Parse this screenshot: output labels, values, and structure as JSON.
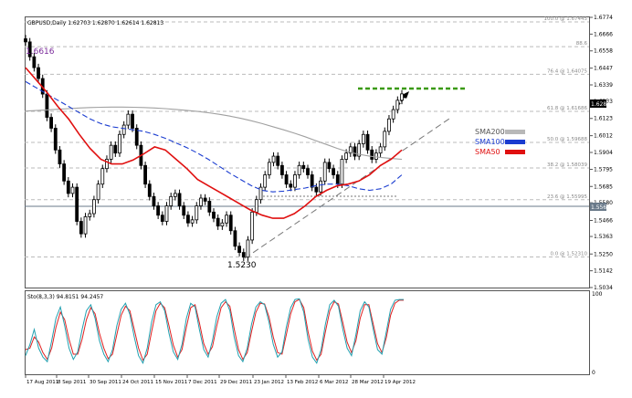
{
  "header": {
    "symbol_info": "GBPUSD,Daily 1.62703 1.62870 1.62614 1.62813"
  },
  "chart_data": {
    "type": "line",
    "title": "GBPUSD,Daily",
    "xlabel": "",
    "ylabel": "",
    "ylim": [
      1.5034,
      1.6774
    ],
    "y_ticks": [
      "1.6774",
      "1.6666",
      "1.6558",
      "1.6447",
      "1.6339",
      "1.6233",
      "1.6123",
      "1.6012",
      "1.5904",
      "1.5795",
      "1.5685",
      "1.5580",
      "1.5466",
      "1.5363",
      "1.5250",
      "1.5142",
      "1.5034"
    ],
    "x_ticks": [
      "17 Aug 2011",
      "8 Sep 2011",
      "30 Sep 2011",
      "24 Oct 2011",
      "15 Nov 2011",
      "7 Dec 2011",
      "29 Dec 2011",
      "23 Jan 2012",
      "13 Feb 2012",
      "6 Mar 2012",
      "28 Mar 2012",
      "19 Apr 2012"
    ],
    "current_price": "1.6281",
    "level_price": "1.5566",
    "price_labels": {
      "high": "1.6616",
      "low": "1.5230"
    },
    "fib_levels": [
      {
        "label": "100.0 @ 1.67445",
        "value": 1.67445
      },
      {
        "label": "88.6",
        "value": 1.6585
      },
      {
        "label": "76.4 @ 1.64075",
        "value": 1.64075
      },
      {
        "label": "61.8 @ 1.61686",
        "value": 1.61686
      },
      {
        "label": "50.0 @ 1.59688",
        "value": 1.59688
      },
      {
        "label": "38.2 @ 1.58039",
        "value": 1.58039
      },
      {
        "label": "23.6 @ 1.55995",
        "value": 1.55995
      },
      {
        "label": "0.0 @ 1.52310",
        "value": 1.5231
      }
    ],
    "price": [
      1.6616,
      1.652,
      1.645,
      1.638,
      1.628,
      1.613,
      1.606,
      1.592,
      1.583,
      1.572,
      1.564,
      1.568,
      1.546,
      1.538,
      1.549,
      1.551,
      1.56,
      1.57,
      1.58,
      1.586,
      1.595,
      1.59,
      1.602,
      1.608,
      1.615,
      1.606,
      1.595,
      1.582,
      1.57,
      1.562,
      1.556,
      1.55,
      1.546,
      1.556,
      1.562,
      1.564,
      1.556,
      1.55,
      1.545,
      1.547,
      1.556,
      1.561,
      1.559,
      1.552,
      1.548,
      1.543,
      1.545,
      1.55,
      1.54,
      1.53,
      1.526,
      1.523,
      1.534,
      1.552,
      1.56,
      1.568,
      1.576,
      1.584,
      1.588,
      1.582,
      1.576,
      1.57,
      1.568,
      1.576,
      1.582,
      1.58,
      1.576,
      1.568,
      1.565,
      1.572,
      1.584,
      1.58,
      1.576,
      1.57,
      1.586,
      1.59,
      1.594,
      1.588,
      1.596,
      1.602,
      1.592,
      1.586,
      1.59,
      1.594,
      1.604,
      1.612,
      1.618,
      1.624,
      1.6281
    ],
    "series": [
      {
        "name": "SMA200",
        "color": "#a0a0a0",
        "legend_color": "#b8b8b8",
        "dash": "solid",
        "values": [
          1.617,
          1.6174,
          1.6178,
          1.6182,
          1.6186,
          1.619,
          1.6193,
          1.6195,
          1.6196,
          1.6196,
          1.6195,
          1.6193,
          1.619,
          1.6186,
          1.6181,
          1.6175,
          1.6168,
          1.616,
          1.615,
          1.6138,
          1.6124,
          1.6108,
          1.609,
          1.607,
          1.605,
          1.6028,
          1.6005,
          1.598,
          1.5955,
          1.593,
          1.5908,
          1.5892,
          1.588,
          1.5872,
          1.5865,
          1.586
        ]
      },
      {
        "name": "SMA100",
        "color": "#1a3cd0",
        "legend_color": "#1a3cd0",
        "dash": "dashed",
        "values": [
          1.636,
          1.632,
          1.628,
          1.624,
          1.62,
          1.616,
          1.612,
          1.609,
          1.607,
          1.606,
          1.605,
          1.604,
          1.602,
          1.5995,
          1.5965,
          1.5935,
          1.59,
          1.586,
          1.5815,
          1.577,
          1.573,
          1.569,
          1.566,
          1.565,
          1.5655,
          1.5665,
          1.5675,
          1.569,
          1.57,
          1.57,
          1.569,
          1.567,
          1.566,
          1.567,
          1.57,
          1.576
        ]
      },
      {
        "name": "SMA50",
        "color": "#e01010",
        "legend_color": "#e01010",
        "dash": "solid",
        "values": [
          1.645,
          1.637,
          1.629,
          1.62,
          1.612,
          1.602,
          1.593,
          1.586,
          1.583,
          1.583,
          1.5855,
          1.5895,
          1.594,
          1.592,
          1.586,
          1.58,
          1.573,
          1.569,
          1.565,
          1.561,
          1.557,
          1.553,
          1.55,
          1.548,
          1.548,
          1.551,
          1.556,
          1.562,
          1.566,
          1.569,
          1.57,
          1.572,
          1.576,
          1.582,
          1.586,
          1.592
        ]
      }
    ],
    "stochastic": {
      "label": "Sto(8,3,3) 94.8151 94.2457",
      "ylim": [
        0,
        100
      ],
      "y_ticks": [
        "100",
        "0"
      ],
      "main": [
        20,
        35,
        55,
        30,
        18,
        12,
        40,
        70,
        85,
        60,
        30,
        15,
        25,
        55,
        80,
        88,
        70,
        40,
        22,
        12,
        28,
        60,
        82,
        90,
        75,
        45,
        20,
        10,
        30,
        65,
        88,
        92,
        80,
        50,
        25,
        15,
        35,
        70,
        90,
        85,
        55,
        28,
        18,
        40,
        72,
        90,
        95,
        80,
        45,
        20,
        12,
        30,
        62,
        85,
        92,
        88,
        65,
        35,
        18,
        25,
        58,
        84,
        95,
        96,
        78,
        42,
        18,
        10,
        28,
        62,
        88,
        94,
        86,
        55,
        30,
        20,
        48,
        80,
        92,
        85,
        55,
        28,
        22,
        52,
        82,
        94,
        95,
        95
      ],
      "signal": [
        28,
        30,
        45,
        38,
        24,
        15,
        30,
        58,
        78,
        68,
        42,
        22,
        22,
        42,
        68,
        84,
        76,
        50,
        30,
        16,
        22,
        48,
        74,
        86,
        80,
        55,
        30,
        14,
        22,
        52,
        80,
        90,
        84,
        60,
        34,
        18,
        28,
        58,
        84,
        88,
        64,
        36,
        22,
        32,
        60,
        84,
        92,
        86,
        56,
        28,
        15,
        24,
        52,
        78,
        90,
        89,
        72,
        45,
        24,
        22,
        48,
        76,
        92,
        95,
        84,
        52,
        26,
        14,
        22,
        52,
        80,
        92,
        89,
        64,
        38,
        24,
        40,
        70,
        88,
        88,
        62,
        36,
        24,
        44,
        74,
        90,
        94,
        94
      ]
    }
  }
}
